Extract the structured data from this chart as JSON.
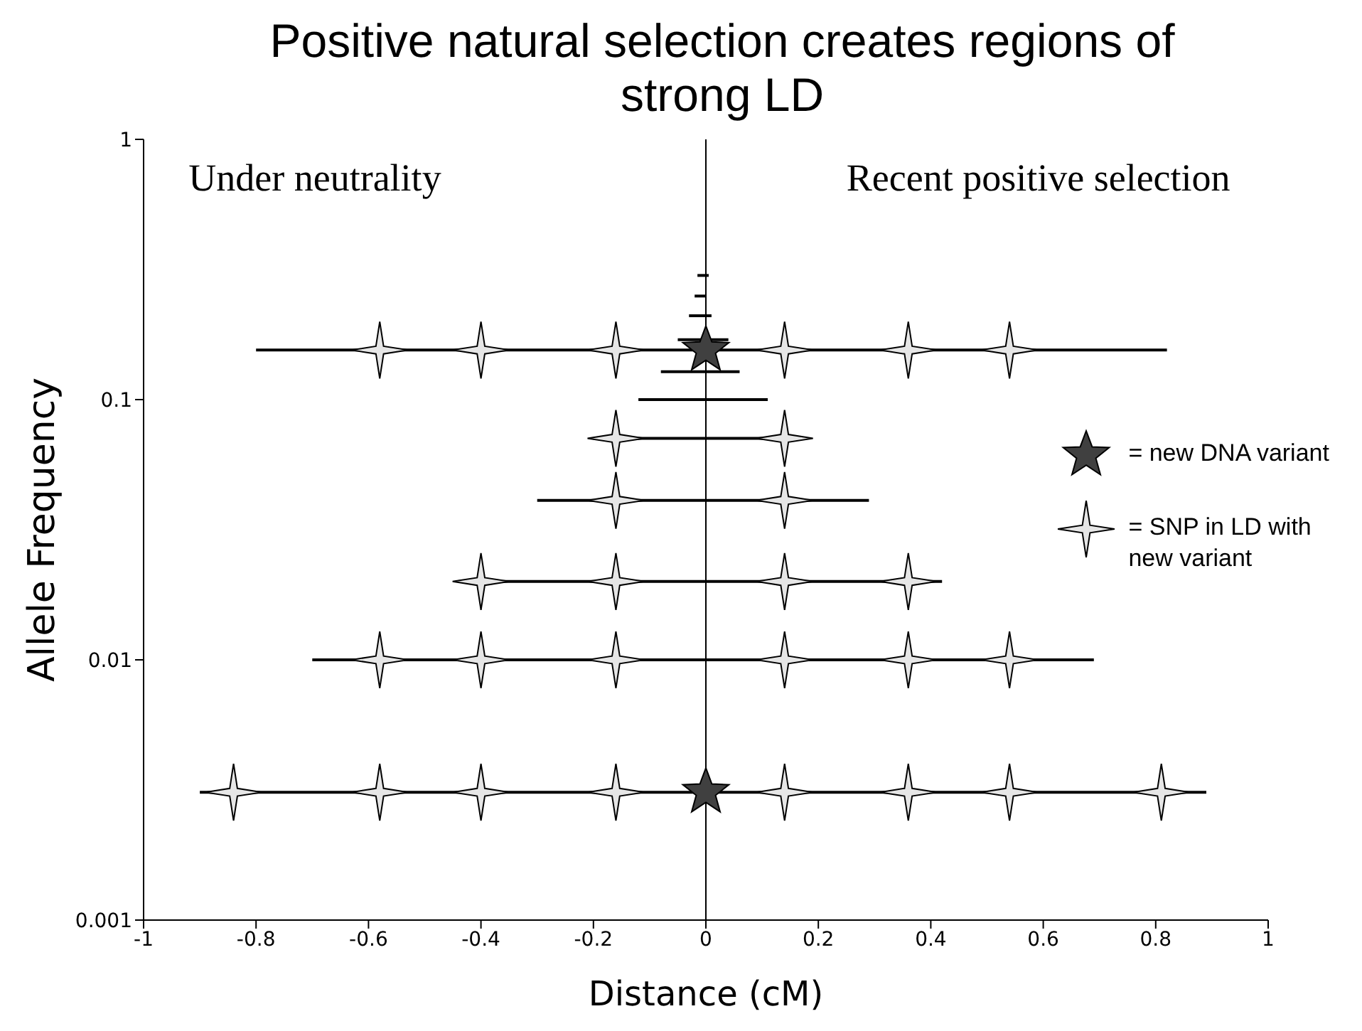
{
  "chart_data": {
    "type": "scatter",
    "title": "Positive natural selection creates regions of strong LD",
    "xlabel": "Distance (cM)",
    "ylabel": "Allele Frequency",
    "annotations": [
      "Under neutrality",
      "Recent positive selection"
    ],
    "xlim": [
      -1,
      1
    ],
    "xticks": [
      -1,
      -0.8,
      -0.6,
      -0.4,
      -0.2,
      0,
      0.2,
      0.4,
      0.6,
      0.8,
      1
    ],
    "ylim": [
      0.001,
      1
    ],
    "yticks": [
      0.001,
      0.01,
      0.1,
      1
    ],
    "log": "y",
    "grid": false,
    "legend": "right",
    "ref_lines": [
      {
        "axis": "x",
        "value": 0,
        "color": "#000000"
      }
    ],
    "series": [
      {
        "type": "line",
        "color": "#000000",
        "marker": "none",
        "line_style": "solid",
        "x": [
          -0.9,
          0.89
        ],
        "values": [
          0.0031,
          0.0031
        ]
      },
      {
        "type": "line",
        "color": "#000000",
        "marker": "none",
        "line_style": "solid",
        "x": [
          -0.7,
          0.69
        ],
        "values": [
          0.01,
          0.01
        ]
      },
      {
        "type": "line",
        "color": "#000000",
        "marker": "none",
        "line_style": "solid",
        "x": [
          -0.44,
          0.42
        ],
        "values": [
          0.02,
          0.02
        ]
      },
      {
        "type": "line",
        "color": "#000000",
        "marker": "none",
        "line_style": "solid",
        "x": [
          -0.3,
          0.29
        ],
        "values": [
          0.041,
          0.041
        ]
      },
      {
        "type": "line",
        "color": "#000000",
        "marker": "none",
        "line_style": "solid",
        "x": [
          -0.2,
          0.18
        ],
        "values": [
          0.071,
          0.071
        ]
      },
      {
        "type": "line",
        "color": "#000000",
        "marker": "none",
        "line_style": "solid",
        "x": [
          -0.12,
          0.11
        ],
        "values": [
          0.1,
          0.1
        ]
      },
      {
        "type": "line",
        "color": "#000000",
        "marker": "none",
        "line_style": "solid",
        "x": [
          -0.08,
          0.06
        ],
        "values": [
          0.128,
          0.128
        ]
      },
      {
        "type": "line",
        "color": "#000000",
        "marker": "none",
        "line_style": "solid",
        "x": [
          -0.8,
          0.82
        ],
        "values": [
          0.155,
          0.155
        ]
      },
      {
        "type": "line",
        "color": "#000000",
        "marker": "none",
        "line_style": "solid",
        "x": [
          -0.05,
          0.04
        ],
        "values": [
          0.17,
          0.17
        ]
      },
      {
        "type": "line",
        "color": "#000000",
        "marker": "none",
        "line_style": "solid",
        "x": [
          -0.03,
          0.01
        ],
        "values": [
          0.21,
          0.21
        ]
      },
      {
        "type": "line",
        "color": "#000000",
        "marker": "none",
        "line_style": "solid",
        "x": [
          -0.02,
          0
        ],
        "values": [
          0.25,
          0.25
        ]
      },
      {
        "type": "line",
        "color": "#000000",
        "marker": "none",
        "line_style": "solid",
        "x": [
          -0.015,
          0.005
        ],
        "values": [
          0.3,
          0.3
        ]
      },
      {
        "name": "= new DNA variant",
        "color": "#404040",
        "marker": "star",
        "x": [
          0,
          0
        ],
        "values": [
          0.0031,
          0.155
        ]
      },
      {
        "name": "= SNP in LD with new variant",
        "color": "#e6e6e6",
        "marker": "cross",
        "x": [
          -0.84,
          -0.58,
          -0.4,
          -0.16,
          0.14,
          0.36,
          0.54,
          0.81,
          -0.58,
          -0.4,
          -0.16,
          0.14,
          0.36,
          0.54,
          -0.4,
          -0.16,
          0.14,
          0.36,
          -0.16,
          0.14,
          -0.16,
          0.14,
          -0.58,
          -0.4,
          -0.16,
          0.14,
          0.36,
          0.54
        ],
        "values": [
          0.0031,
          0.0031,
          0.0031,
          0.0031,
          0.0031,
          0.0031,
          0.0031,
          0.0031,
          0.01,
          0.01,
          0.01,
          0.01,
          0.01,
          0.01,
          0.02,
          0.02,
          0.02,
          0.02,
          0.041,
          0.041,
          0.071,
          0.071,
          0.155,
          0.155,
          0.155,
          0.155,
          0.155,
          0.155
        ]
      }
    ]
  }
}
